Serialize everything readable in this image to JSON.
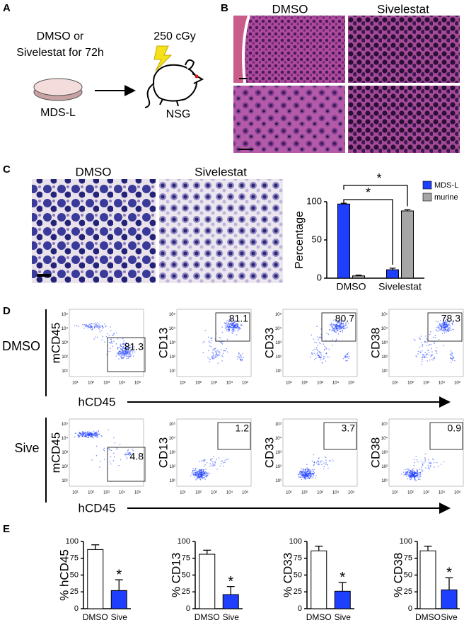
{
  "panel_labels": [
    "A",
    "B",
    "C",
    "D",
    "E"
  ],
  "panel_a": {
    "treatment_line1": "DMSO or",
    "treatment_line2": "Sivelestat for 72h",
    "dish_label": "MDS-L",
    "dose": "250 cGy",
    "mouse_label": "NSG"
  },
  "panel_b": {
    "columns": [
      "DMSO",
      "Sivelestat"
    ]
  },
  "panel_c": {
    "columns": [
      "DMSO",
      "Sivelestat"
    ]
  },
  "panel_d": {
    "x_label": "hCD45",
    "ticks": [
      "10¹",
      "10²",
      "10³",
      "10⁴",
      "10⁵"
    ],
    "rows": [
      {
        "label": "DMSO",
        "y_labels": [
          "mCD45",
          "CD13",
          "CD33",
          "CD38"
        ],
        "gates": [
          81.3,
          81.1,
          80.7,
          78.3
        ]
      },
      {
        "label": "Sive",
        "y_labels": [
          "mCD45",
          "CD13",
          "CD33",
          "CD38"
        ],
        "gates": [
          4.8,
          1.2,
          3.7,
          0.9
        ]
      }
    ]
  },
  "chart_data": [
    {
      "type": "bar",
      "categories": [
        "DMSO",
        "Sivelestat"
      ],
      "series": [
        {
          "name": "MDS-L",
          "color": "#1f3fff",
          "values": [
            97,
            11
          ],
          "errors": [
            1,
            2
          ]
        },
        {
          "name": "murine",
          "color": "#a6a6a6",
          "values": [
            3,
            88
          ],
          "errors": [
            1,
            1.5
          ]
        }
      ],
      "y_label": "Percentage",
      "ylim": [
        0,
        100
      ],
      "yticks": [
        0,
        50,
        100
      ],
      "annotations": [
        "*",
        "*"
      ]
    },
    {
      "type": "bar",
      "categories": [
        "DMSO",
        "Sive"
      ],
      "values": [
        88,
        27
      ],
      "errors": [
        7,
        16
      ],
      "colors": [
        "#ffffff",
        "#1f3fff"
      ],
      "y_label": "% hCD45",
      "ylim": [
        0,
        100
      ],
      "yticks": [
        0,
        25,
        50,
        75,
        100
      ],
      "annotations": [
        "*"
      ]
    },
    {
      "type": "bar",
      "categories": [
        "DMSO",
        "Sive"
      ],
      "values": [
        81,
        21
      ],
      "errors": [
        6,
        12
      ],
      "colors": [
        "#ffffff",
        "#1f3fff"
      ],
      "y_label": "% CD13",
      "ylim": [
        0,
        100
      ],
      "yticks": [
        0,
        25,
        50,
        75,
        100
      ],
      "annotations": [
        "*"
      ]
    },
    {
      "type": "bar",
      "categories": [
        "DMSO",
        "Sive"
      ],
      "values": [
        86,
        26
      ],
      "errors": [
        7,
        13
      ],
      "colors": [
        "#ffffff",
        "#1f3fff"
      ],
      "y_label": "% CD33",
      "ylim": [
        0,
        100
      ],
      "yticks": [
        0,
        25,
        50,
        75,
        100
      ],
      "annotations": [
        "*"
      ]
    },
    {
      "type": "bar",
      "categories": [
        "DMSO",
        "Sive"
      ],
      "values": [
        86,
        28
      ],
      "errors": [
        7,
        18
      ],
      "colors": [
        "#ffffff",
        "#1f3fff"
      ],
      "y_label": "% CD38",
      "ylim": [
        0,
        100
      ],
      "yticks": [
        0,
        25,
        50,
        75,
        100
      ],
      "annotations": [
        "*"
      ]
    }
  ]
}
